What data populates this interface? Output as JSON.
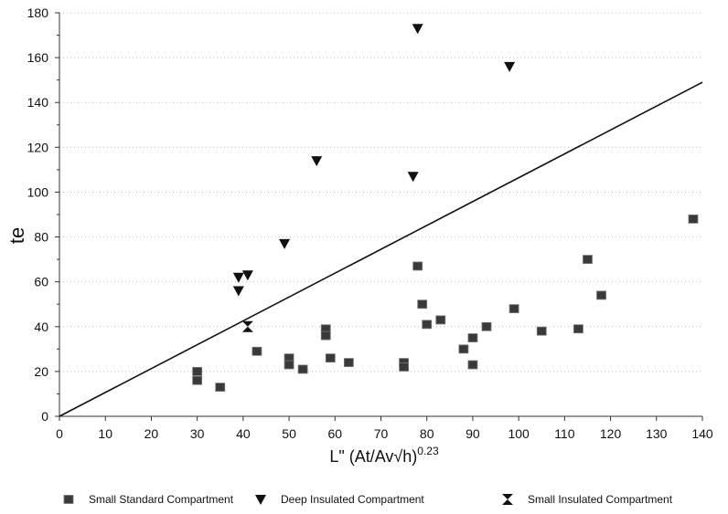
{
  "chart_data": {
    "type": "scatter",
    "title": "",
    "xlabel": {
      "main": "L\" (At/Av√h)",
      "exponent": "0.23"
    },
    "ylabel": "te",
    "xlim": [
      0,
      140
    ],
    "ylim": [
      0,
      180
    ],
    "x_ticks": [
      0,
      10,
      20,
      30,
      40,
      50,
      60,
      70,
      80,
      90,
      100,
      110,
      120,
      130,
      140
    ],
    "y_ticks": [
      0,
      20,
      40,
      60,
      80,
      100,
      120,
      140,
      160,
      180
    ],
    "grid": true,
    "legend_position": "bottom",
    "reference_line": {
      "x": [
        0,
        140
      ],
      "y": [
        0,
        149
      ]
    },
    "series": [
      {
        "name": "Small Standard Compartment",
        "marker": "square",
        "points": [
          [
            30,
            20
          ],
          [
            30,
            16
          ],
          [
            35,
            13
          ],
          [
            43,
            29
          ],
          [
            50,
            26
          ],
          [
            50,
            23
          ],
          [
            53,
            21
          ],
          [
            58,
            39
          ],
          [
            58,
            36
          ],
          [
            59,
            26
          ],
          [
            63,
            24
          ],
          [
            75,
            24
          ],
          [
            75,
            22
          ],
          [
            78,
            67
          ],
          [
            79,
            50
          ],
          [
            80,
            41
          ],
          [
            83,
            43
          ],
          [
            88,
            30
          ],
          [
            90,
            35
          ],
          [
            90,
            23
          ],
          [
            93,
            40
          ],
          [
            99,
            48
          ],
          [
            105,
            38
          ],
          [
            113,
            39
          ],
          [
            115,
            70
          ],
          [
            118,
            54
          ],
          [
            138,
            88
          ]
        ]
      },
      {
        "name": "Deep Insulated Compartment",
        "marker": "triangle-down",
        "points": [
          [
            39,
            62
          ],
          [
            41,
            63
          ],
          [
            39,
            56
          ],
          [
            49,
            77
          ],
          [
            56,
            114
          ],
          [
            77,
            107
          ],
          [
            78,
            173
          ],
          [
            98,
            156
          ]
        ]
      },
      {
        "name": "Small Insulated Compartment",
        "marker": "hourglass",
        "points": [
          [
            41,
            40
          ]
        ]
      }
    ]
  }
}
